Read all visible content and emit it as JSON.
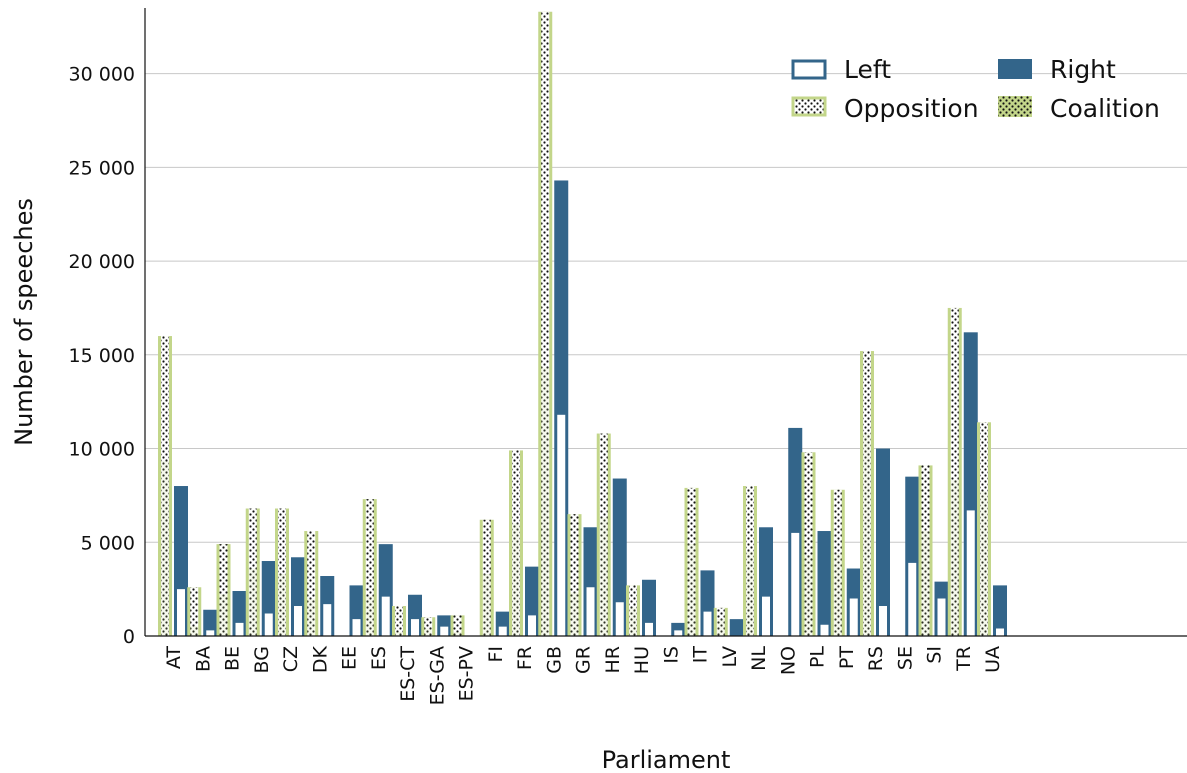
{
  "chart_data": {
    "type": "bar",
    "title": "",
    "xlabel": "Parliament",
    "ylabel": "Number of speeches",
    "ylim": [
      0,
      33500
    ],
    "yticks": [
      0,
      5000,
      10000,
      15000,
      20000,
      25000,
      30000
    ],
    "ytick_labels": [
      "0",
      "5 000",
      "10 000",
      "15 000",
      "20 000",
      "25 000",
      "30 000"
    ],
    "grid": "horizontal",
    "legend_position": "top-right",
    "legend": [
      {
        "label": "Left",
        "style": "outline",
        "color": "#33658a"
      },
      {
        "label": "Right",
        "style": "filled",
        "color": "#33658a"
      },
      {
        "label": "Opposition",
        "style": "dotted-light",
        "color": "#c3d68a"
      },
      {
        "label": "Coalition",
        "style": "dotted",
        "color": "#c3d68a"
      }
    ],
    "colors": {
      "green": "#c3d68a",
      "blue": "#33658a"
    },
    "categories": [
      "AT",
      "BA",
      "BE",
      "BG",
      "CZ",
      "DK",
      "EE",
      "ES",
      "ES-CT",
      "ES-GA",
      "ES-PV",
      "FI",
      "FR",
      "GB",
      "GR",
      "HR",
      "HU",
      "IS",
      "IT",
      "LV",
      "NL",
      "NO",
      "PL",
      "PT",
      "RS",
      "SE",
      "SI",
      "TR",
      "UA"
    ],
    "series": [
      {
        "name": "Opposition",
        "values": [
          9300,
          500,
          2200,
          3600,
          3300,
          2000,
          0,
          2100,
          200,
          400,
          200,
          3300,
          6000,
          14300,
          2300,
          6300,
          1500,
          0,
          4900,
          900,
          4500,
          0,
          4300,
          4400,
          10800,
          0,
          5600,
          8300,
          7700
        ]
      },
      {
        "name": "Coalition",
        "values": [
          6700,
          2100,
          2700,
          3200,
          3500,
          3600,
          0,
          5200,
          1400,
          600,
          900,
          2900,
          3900,
          19000,
          4200,
          4500,
          1200,
          0,
          3000,
          600,
          3500,
          0,
          5500,
          3400,
          4400,
          0,
          3500,
          9200,
          3700
        ]
      },
      {
        "name": "Left",
        "values": [
          2500,
          300,
          700,
          1200,
          1600,
          1700,
          900,
          2100,
          900,
          500,
          0,
          500,
          1100,
          11800,
          2600,
          1800,
          700,
          300,
          1300,
          0,
          2100,
          5500,
          600,
          2000,
          1600,
          3900,
          2000,
          6700,
          400
        ]
      },
      {
        "name": "Right",
        "values": [
          5500,
          1100,
          1700,
          2800,
          2600,
          1500,
          1800,
          2800,
          1300,
          600,
          0,
          800,
          2600,
          12500,
          3200,
          6600,
          2300,
          400,
          2200,
          900,
          3700,
          5600,
          5000,
          1600,
          8400,
          4600,
          900,
          9500,
          2300
        ]
      }
    ]
  }
}
